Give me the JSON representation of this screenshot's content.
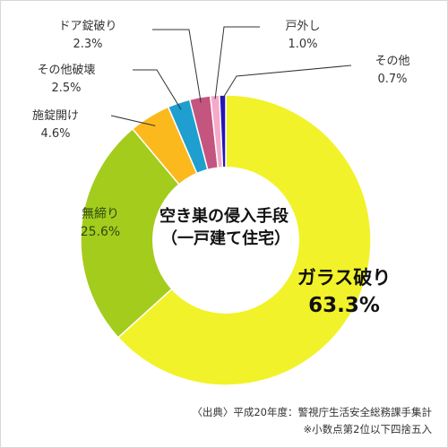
{
  "chart_data": {
    "type": "pie",
    "donut": true,
    "title": "空き巣の侵入手段",
    "subtitle": "（一戸建て住宅）",
    "slices": [
      {
        "label": "ガラス破り",
        "display": "63.3%",
        "value": 63.3,
        "color": "#f2f22a"
      },
      {
        "label": "無締り",
        "display": "25.6%",
        "value": 25.6,
        "color": "#a3cc1d"
      },
      {
        "label": "施錠開け",
        "display": "4.6%",
        "value": 4.6,
        "color": "#fbb91e"
      },
      {
        "label": "その他破壊",
        "display": "2.5%",
        "value": 2.5,
        "color": "#1e9fcf"
      },
      {
        "label": "ドア錠破り",
        "display": "2.3%",
        "value": 2.3,
        "color": "#c4557f"
      },
      {
        "label": "戸外し",
        "display": "1.0%",
        "value": 1.0,
        "color": "#f6a9c8"
      },
      {
        "label": "その他",
        "display": "0.7%",
        "value": 0.7,
        "color": "#2416b8"
      }
    ],
    "direction": "clockwise-from-top"
  },
  "source_text": "〈出典〉平成20年度：警視庁生活安全総務課手集計",
  "note_text": "※小数点第2位以下四捨五入"
}
